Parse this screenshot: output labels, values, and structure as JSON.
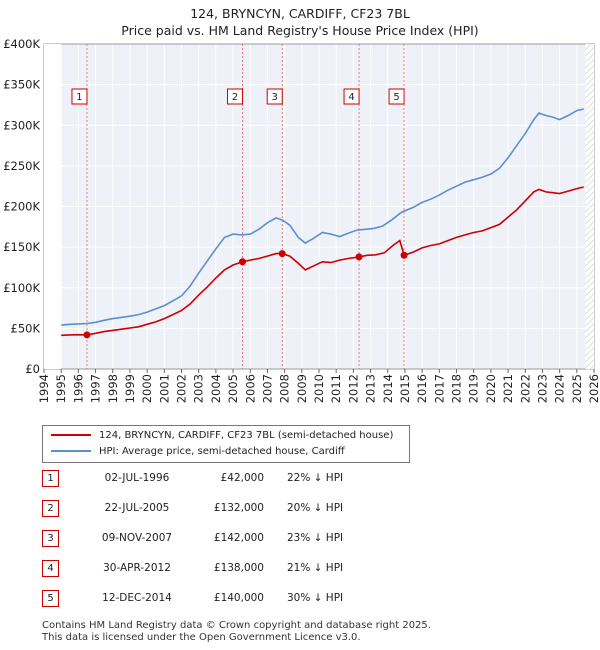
{
  "title_line1": "124, BRYNCYN, CARDIFF, CF23 7BL",
  "title_line2": "Price paid vs. HM Land Registry's House Price Index (HPI)",
  "chart_data": {
    "type": "line",
    "x_range": [
      1994,
      2026
    ],
    "y_range": [
      0,
      400000
    ],
    "y_ticks": [
      {
        "value": 0,
        "label": "£0"
      },
      {
        "value": 50000,
        "label": "£50K"
      },
      {
        "value": 100000,
        "label": "£100K"
      },
      {
        "value": 150000,
        "label": "£150K"
      },
      {
        "value": 200000,
        "label": "£200K"
      },
      {
        "value": 250000,
        "label": "£250K"
      },
      {
        "value": 300000,
        "label": "£300K"
      },
      {
        "value": 350000,
        "label": "£350K"
      },
      {
        "value": 400000,
        "label": "£400K"
      }
    ],
    "x_ticks": [
      "1994",
      "1995",
      "1996",
      "1997",
      "1998",
      "1999",
      "2000",
      "2001",
      "2002",
      "2003",
      "2004",
      "2005",
      "2006",
      "2007",
      "2008",
      "2009",
      "2010",
      "2011",
      "2012",
      "2013",
      "2014",
      "2015",
      "2016",
      "2017",
      "2018",
      "2019",
      "2020",
      "2021",
      "2022",
      "2023",
      "2024",
      "2025",
      "2026"
    ],
    "data_start": 1995.0,
    "data_end": 2025.5,
    "series": [
      {
        "name": "hpi",
        "color": "#5b8fcf",
        "points": [
          [
            1995.0,
            54000
          ],
          [
            1995.5,
            55000
          ],
          [
            1996.0,
            55500
          ],
          [
            1996.5,
            56000
          ],
          [
            1997.0,
            57500
          ],
          [
            1997.5,
            60000
          ],
          [
            1998.0,
            62000
          ],
          [
            1998.5,
            63500
          ],
          [
            1999.0,
            65000
          ],
          [
            1999.5,
            67000
          ],
          [
            2000.0,
            70000
          ],
          [
            2000.5,
            74000
          ],
          [
            2001.0,
            78000
          ],
          [
            2001.5,
            84000
          ],
          [
            2002.0,
            90000
          ],
          [
            2002.5,
            102000
          ],
          [
            2003.0,
            118000
          ],
          [
            2003.5,
            133000
          ],
          [
            2004.0,
            148000
          ],
          [
            2004.5,
            162000
          ],
          [
            2005.0,
            166000
          ],
          [
            2005.5,
            165000
          ],
          [
            2006.0,
            166000
          ],
          [
            2006.5,
            172000
          ],
          [
            2007.0,
            180000
          ],
          [
            2007.5,
            186000
          ],
          [
            2007.9,
            183000
          ],
          [
            2008.3,
            177000
          ],
          [
            2008.8,
            162000
          ],
          [
            2009.2,
            155000
          ],
          [
            2009.7,
            161000
          ],
          [
            2010.2,
            168000
          ],
          [
            2010.7,
            166000
          ],
          [
            2011.2,
            163000
          ],
          [
            2011.7,
            167000
          ],
          [
            2012.2,
            171000
          ],
          [
            2012.7,
            172000
          ],
          [
            2013.2,
            173000
          ],
          [
            2013.7,
            176000
          ],
          [
            2014.2,
            183000
          ],
          [
            2014.8,
            193000
          ],
          [
            2015.5,
            199000
          ],
          [
            2016.0,
            205000
          ],
          [
            2016.5,
            209000
          ],
          [
            2017.0,
            214000
          ],
          [
            2017.5,
            220000
          ],
          [
            2018.0,
            225000
          ],
          [
            2018.5,
            230000
          ],
          [
            2019.0,
            233000
          ],
          [
            2019.5,
            236000
          ],
          [
            2020.0,
            240000
          ],
          [
            2020.5,
            247000
          ],
          [
            2021.0,
            260000
          ],
          [
            2021.5,
            275000
          ],
          [
            2022.0,
            290000
          ],
          [
            2022.5,
            307000
          ],
          [
            2022.8,
            315000
          ],
          [
            2023.2,
            312000
          ],
          [
            2023.6,
            310000
          ],
          [
            2024.0,
            307000
          ],
          [
            2024.5,
            312000
          ],
          [
            2025.0,
            318000
          ],
          [
            2025.4,
            320000
          ]
        ]
      },
      {
        "name": "price",
        "color": "#cc0000",
        "points": [
          [
            1995.0,
            41500
          ],
          [
            1995.5,
            42000
          ],
          [
            1996.0,
            42200
          ],
          [
            1996.5,
            42000
          ],
          [
            1997.0,
            44000
          ],
          [
            1997.5,
            46000
          ],
          [
            1998.0,
            47500
          ],
          [
            1998.5,
            49000
          ],
          [
            1999.0,
            50500
          ],
          [
            1999.5,
            52000
          ],
          [
            2000.0,
            55000
          ],
          [
            2000.5,
            58000
          ],
          [
            2001.0,
            62000
          ],
          [
            2001.5,
            67000
          ],
          [
            2002.0,
            72000
          ],
          [
            2002.5,
            80000
          ],
          [
            2003.0,
            91000
          ],
          [
            2003.5,
            101000
          ],
          [
            2004.0,
            112000
          ],
          [
            2004.5,
            122000
          ],
          [
            2005.0,
            128000
          ],
          [
            2005.55,
            132000
          ],
          [
            2006.0,
            134000
          ],
          [
            2006.5,
            136000
          ],
          [
            2007.0,
            139000
          ],
          [
            2007.5,
            142000
          ],
          [
            2007.86,
            142000
          ],
          [
            2008.3,
            139000
          ],
          [
            2008.8,
            130000
          ],
          [
            2009.2,
            122000
          ],
          [
            2009.7,
            127000
          ],
          [
            2010.2,
            132000
          ],
          [
            2010.7,
            131000
          ],
          [
            2011.2,
            134000
          ],
          [
            2011.7,
            136000
          ],
          [
            2012.33,
            138000
          ],
          [
            2012.8,
            140000
          ],
          [
            2013.3,
            140500
          ],
          [
            2013.8,
            143000
          ],
          [
            2014.3,
            152000
          ],
          [
            2014.7,
            158000
          ],
          [
            2014.95,
            140000
          ],
          [
            2015.5,
            144000
          ],
          [
            2016.0,
            149000
          ],
          [
            2016.5,
            152000
          ],
          [
            2017.0,
            154000
          ],
          [
            2017.5,
            158000
          ],
          [
            2018.0,
            162000
          ],
          [
            2018.5,
            165000
          ],
          [
            2019.0,
            168000
          ],
          [
            2019.5,
            170000
          ],
          [
            2020.0,
            174000
          ],
          [
            2020.5,
            178000
          ],
          [
            2021.0,
            187000
          ],
          [
            2021.5,
            196000
          ],
          [
            2022.0,
            207000
          ],
          [
            2022.5,
            218000
          ],
          [
            2022.8,
            221000
          ],
          [
            2023.2,
            218000
          ],
          [
            2023.6,
            217000
          ],
          [
            2024.0,
            216000
          ],
          [
            2024.5,
            219000
          ],
          [
            2025.0,
            222000
          ],
          [
            2025.4,
            224000
          ]
        ]
      }
    ],
    "sale_markers": [
      {
        "label": "1",
        "x": 1996.5,
        "y": 42000
      },
      {
        "label": "2",
        "x": 2005.55,
        "y": 132000
      },
      {
        "label": "3",
        "x": 2007.86,
        "y": 142000
      },
      {
        "label": "4",
        "x": 2012.33,
        "y": 138000
      },
      {
        "label": "5",
        "x": 2014.95,
        "y": 140000
      }
    ]
  },
  "legend": {
    "price_label": "124, BRYNCYN, CARDIFF, CF23 7BL (semi-detached house)",
    "hpi_label": "HPI: Average price, semi-detached house, Cardiff"
  },
  "sales": [
    {
      "num": "1",
      "date": "02-JUL-1996",
      "price": "£42,000",
      "hpi": "22% ↓ HPI"
    },
    {
      "num": "2",
      "date": "22-JUL-2005",
      "price": "£132,000",
      "hpi": "20% ↓ HPI"
    },
    {
      "num": "3",
      "date": "09-NOV-2007",
      "price": "£142,000",
      "hpi": "23% ↓ HPI"
    },
    {
      "num": "4",
      "date": "30-APR-2012",
      "price": "£138,000",
      "hpi": "21% ↓ HPI"
    },
    {
      "num": "5",
      "date": "12-DEC-2014",
      "price": "£140,000",
      "hpi": "30% ↓ HPI"
    }
  ],
  "footer_line1": "Contains HM Land Registry data © Crown copyright and database right 2025.",
  "footer_line2": "This data is licensed under the Open Government Licence v3.0."
}
